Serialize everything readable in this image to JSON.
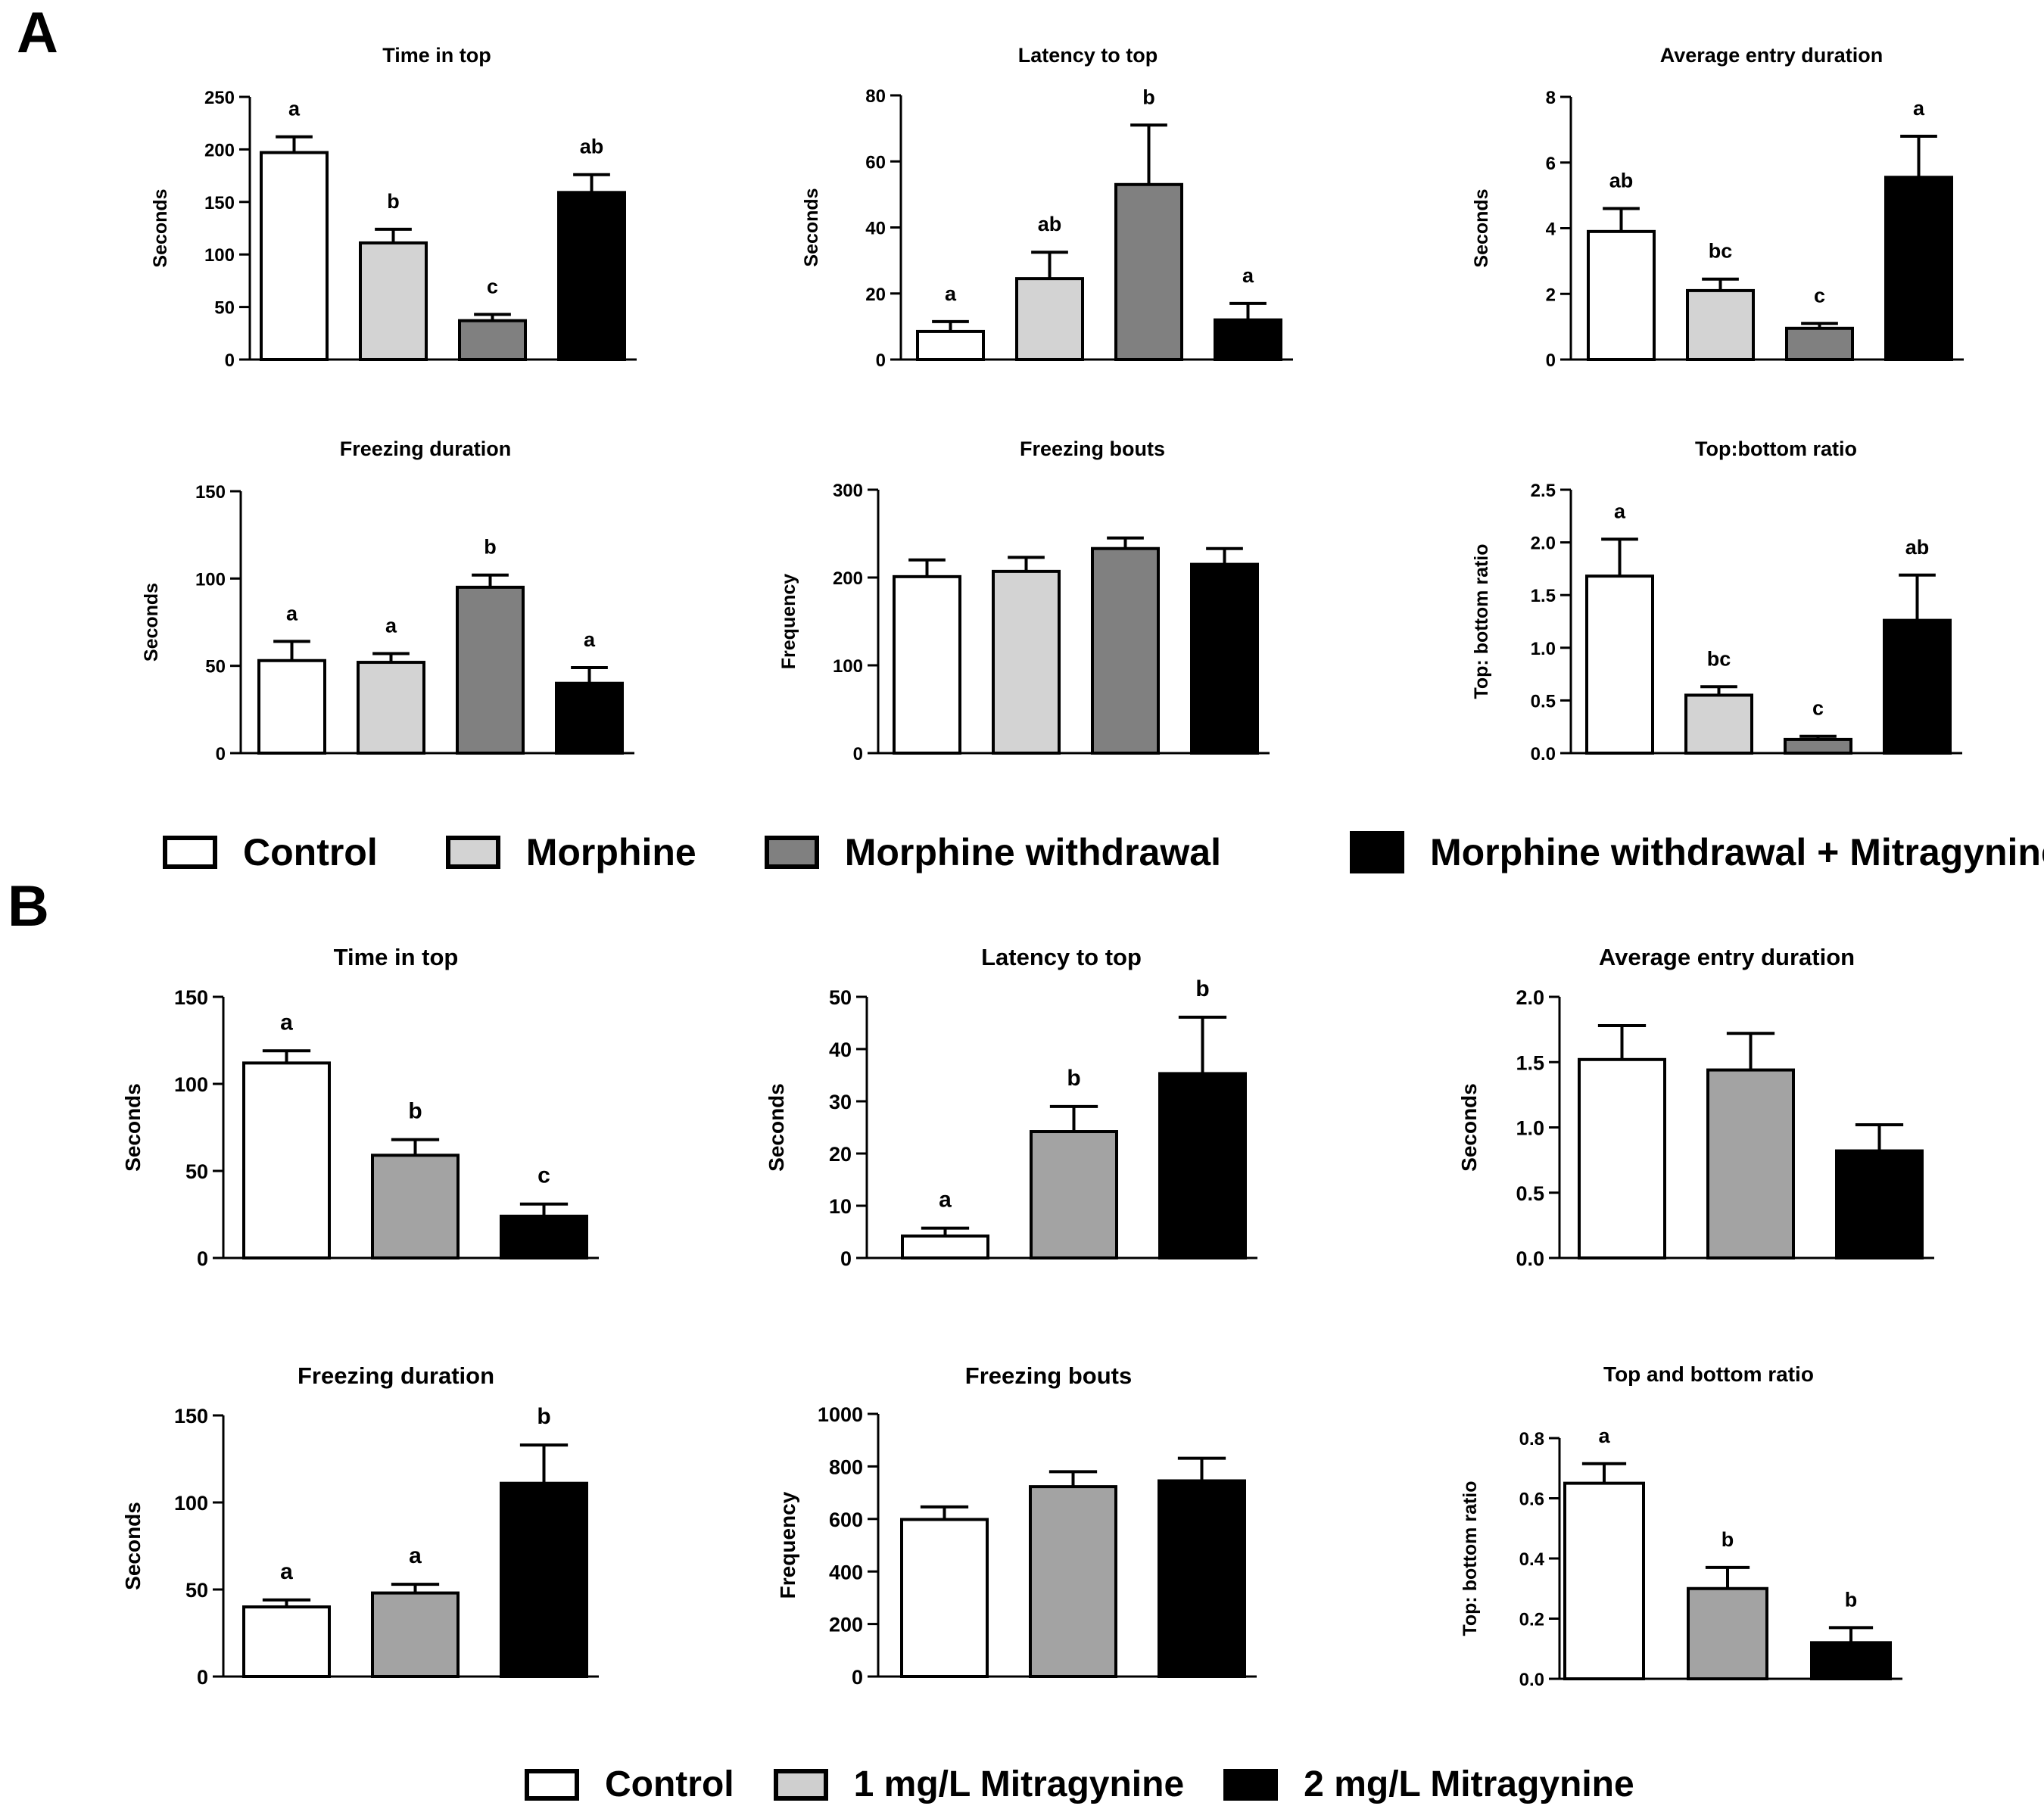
{
  "panels": [
    {
      "label": "A"
    },
    {
      "label": "B"
    }
  ],
  "legends": [
    {
      "items": [
        {
          "label": "Control",
          "color": "#ffffff"
        },
        {
          "label": "Morphine",
          "color": "#d3d3d3"
        },
        {
          "label": "Morphine withdrawal",
          "color": "#808080"
        },
        {
          "label": "Morphine withdrawal + Mitragynine",
          "color": "#000000"
        }
      ]
    },
    {
      "items": [
        {
          "label": "Control",
          "color": "#ffffff"
        },
        {
          "label": "1 mg/L Mitragynine",
          "color": "#a3a3a3"
        },
        {
          "label": "2 mg/L Mitragynine",
          "color": "#000000"
        }
      ]
    }
  ],
  "chart_data": [
    {
      "panel": "A",
      "type": "bar",
      "title": "Time in top",
      "ylabel": "Seconds",
      "ylim": [
        0,
        250
      ],
      "yticks": [
        "0",
        "50",
        "100",
        "150",
        "200",
        "250"
      ],
      "categories": [
        "Control",
        "Morphine",
        "Morphine withdrawal",
        "Morphine withdrawal + Mitragynine"
      ],
      "colors": [
        "#ffffff",
        "#d3d3d3",
        "#808080",
        "#000000"
      ],
      "values": [
        197,
        111,
        37,
        159
      ],
      "errors": [
        15,
        13,
        6,
        17
      ],
      "annotations": [
        "a",
        "b",
        "c",
        "ab"
      ]
    },
    {
      "panel": "A",
      "type": "bar",
      "title": "Latency to top",
      "ylabel": "Seconds",
      "ylim": [
        0,
        80
      ],
      "yticks": [
        "0",
        "20",
        "40",
        "60",
        "80"
      ],
      "categories": [
        "Control",
        "Morphine",
        "Morphine withdrawal",
        "Morphine withdrawal + Mitragynine"
      ],
      "colors": [
        "#ffffff",
        "#d3d3d3",
        "#808080",
        "#000000"
      ],
      "values": [
        8.5,
        24.5,
        53,
        12
      ],
      "errors": [
        3,
        8,
        18,
        5
      ],
      "annotations": [
        "a",
        "ab",
        "b",
        "a"
      ]
    },
    {
      "panel": "A",
      "type": "bar",
      "title": "Average entry duration",
      "ylabel": "Seconds",
      "ylim": [
        0,
        8
      ],
      "yticks": [
        "0",
        "2",
        "4",
        "6",
        "8"
      ],
      "categories": [
        "Control",
        "Morphine",
        "Morphine withdrawal",
        "Morphine withdrawal + Mitragynine"
      ],
      "colors": [
        "#ffffff",
        "#d3d3d3",
        "#808080",
        "#000000"
      ],
      "values": [
        3.9,
        2.1,
        0.95,
        5.55
      ],
      "errors": [
        0.7,
        0.35,
        0.15,
        1.25
      ],
      "annotations": [
        "ab",
        "bc",
        "c",
        "a"
      ]
    },
    {
      "panel": "A",
      "type": "bar",
      "title": "Freezing duration",
      "ylabel": "Seconds",
      "ylim": [
        0,
        150
      ],
      "yticks": [
        "0",
        "50",
        "100",
        "150"
      ],
      "categories": [
        "Control",
        "Morphine",
        "Morphine withdrawal",
        "Morphine withdrawal + Mitragynine"
      ],
      "colors": [
        "#ffffff",
        "#d3d3d3",
        "#808080",
        "#000000"
      ],
      "values": [
        53,
        52,
        95,
        40
      ],
      "errors": [
        11,
        5,
        7,
        9
      ],
      "annotations": [
        "a",
        "a",
        "b",
        "a"
      ]
    },
    {
      "panel": "A",
      "type": "bar",
      "title": "Freezing bouts",
      "ylabel": "Frequency",
      "ylim": [
        0,
        300
      ],
      "yticks": [
        "0",
        "100",
        "200",
        "300"
      ],
      "categories": [
        "Control",
        "Morphine",
        "Morphine withdrawal",
        "Morphine withdrawal + Mitragynine"
      ],
      "colors": [
        "#ffffff",
        "#d3d3d3",
        "#808080",
        "#000000"
      ],
      "values": [
        201,
        207,
        233,
        215
      ],
      "errors": [
        19,
        16,
        12,
        18
      ],
      "annotations": [
        "",
        "",
        "",
        ""
      ]
    },
    {
      "panel": "A",
      "type": "bar",
      "title": "Top:bottom ratio",
      "ylabel": "Top: bottom ratio",
      "ylim": [
        0,
        2.5
      ],
      "yticks": [
        "0.0",
        "0.5",
        "1.0",
        "1.5",
        "2.0",
        "2.5"
      ],
      "categories": [
        "Control",
        "Morphine",
        "Morphine withdrawal",
        "Morphine withdrawal + Mitragynine"
      ],
      "colors": [
        "#ffffff",
        "#d3d3d3",
        "#808080",
        "#000000"
      ],
      "values": [
        1.68,
        0.55,
        0.13,
        1.26
      ],
      "errors": [
        0.35,
        0.08,
        0.03,
        0.43
      ],
      "annotations": [
        "a",
        "bc",
        "c",
        "ab"
      ]
    },
    {
      "panel": "B",
      "type": "bar",
      "title": "Time in top",
      "ylabel": "Seconds",
      "ylim": [
        0,
        150
      ],
      "yticks": [
        "0",
        "50",
        "100",
        "150"
      ],
      "categories": [
        "Control",
        "1 mg/L Mitragynine",
        "2 mg/L Mitragynine"
      ],
      "colors": [
        "#ffffff",
        "#a3a3a3",
        "#000000"
      ],
      "values": [
        112,
        59,
        24
      ],
      "errors": [
        7,
        9,
        7
      ],
      "annotations": [
        "a",
        "b",
        "c"
      ]
    },
    {
      "panel": "B",
      "type": "bar",
      "title": "Latency to top",
      "ylabel": "Seconds",
      "ylim": [
        0,
        50
      ],
      "yticks": [
        "0",
        "10",
        "20",
        "30",
        "40",
        "50"
      ],
      "categories": [
        "Control",
        "1 mg/L Mitragynine",
        "2 mg/L Mitragynine"
      ],
      "colors": [
        "#ffffff",
        "#a3a3a3",
        "#000000"
      ],
      "values": [
        4.2,
        24.2,
        35.3
      ],
      "errors": [
        1.5,
        4.8,
        10.8
      ],
      "annotations": [
        "a",
        "b",
        "b"
      ]
    },
    {
      "panel": "B",
      "type": "bar",
      "title": "Average entry duration",
      "ylabel": "Seconds",
      "ylim": [
        0,
        2.0
      ],
      "yticks": [
        "0.0",
        "0.5",
        "1.0",
        "1.5",
        "2.0"
      ],
      "categories": [
        "Control",
        "1 mg/L Mitragynine",
        "2 mg/L Mitragynine"
      ],
      "colors": [
        "#ffffff",
        "#a3a3a3",
        "#000000"
      ],
      "values": [
        1.52,
        1.44,
        0.82
      ],
      "errors": [
        0.26,
        0.28,
        0.2
      ],
      "annotations": [
        "",
        "",
        ""
      ]
    },
    {
      "panel": "B",
      "type": "bar",
      "title": "Freezing duration",
      "ylabel": "Seconds",
      "ylim": [
        0,
        150
      ],
      "yticks": [
        "0",
        "50",
        "100",
        "150"
      ],
      "categories": [
        "Control",
        "1 mg/L Mitragynine",
        "2 mg/L Mitragynine"
      ],
      "colors": [
        "#ffffff",
        "#a3a3a3",
        "#000000"
      ],
      "values": [
        40,
        48,
        111
      ],
      "errors": [
        4,
        5,
        22
      ],
      "annotations": [
        "a",
        "a",
        "b"
      ]
    },
    {
      "panel": "B",
      "type": "bar",
      "title": "Freezing bouts",
      "ylabel": "Frequency",
      "ylim": [
        0,
        1000
      ],
      "yticks": [
        "0",
        "200",
        "400",
        "600",
        "800",
        "1000"
      ],
      "categories": [
        "Control",
        "1 mg/L Mitragynine",
        "2 mg/L Mitragynine"
      ],
      "colors": [
        "#ffffff",
        "#a3a3a3",
        "#000000"
      ],
      "values": [
        598,
        723,
        745
      ],
      "errors": [
        48,
        57,
        86
      ],
      "annotations": [
        "",
        "",
        ""
      ]
    },
    {
      "panel": "B",
      "type": "bar",
      "title": "Top and bottom ratio",
      "ylabel": "Top: bottom ratio",
      "ylim": [
        0,
        0.8
      ],
      "yticks": [
        "0.0",
        "0.2",
        "0.4",
        "0.6",
        "0.8"
      ],
      "categories": [
        "Control",
        "1 mg/L Mitragynine",
        "2 mg/L Mitragynine"
      ],
      "colors": [
        "#ffffff",
        "#a3a3a3",
        "#000000"
      ],
      "values": [
        0.65,
        0.3,
        0.12
      ],
      "errors": [
        0.065,
        0.07,
        0.05
      ],
      "annotations": [
        "a",
        "b",
        "b"
      ]
    }
  ]
}
